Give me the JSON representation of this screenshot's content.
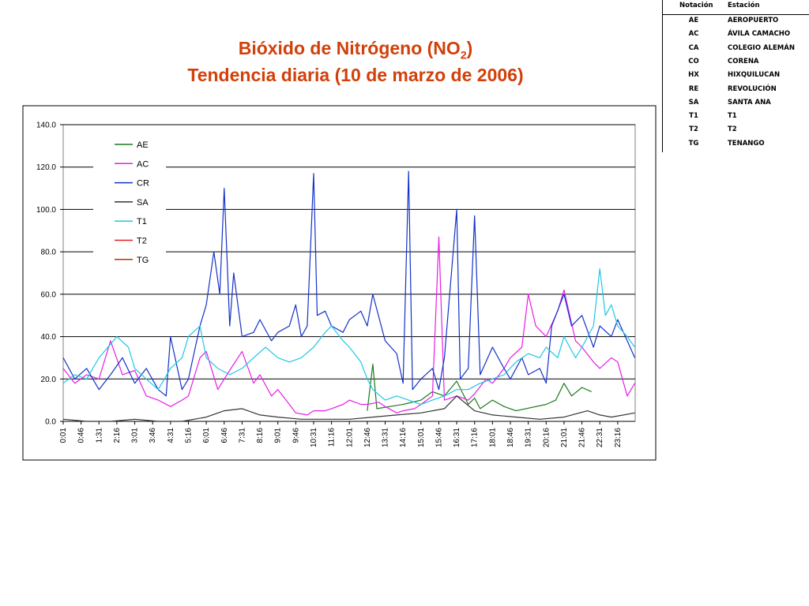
{
  "title_line1_main": "Bióxido de Nitrógeno (NO",
  "title_line1_sub": "2",
  "title_line1_end": ")",
  "title_line2": "Tendencia diaria (10 de marzo de 2006)",
  "station_table": {
    "headers": [
      "Notación",
      "Estación"
    ],
    "rows": [
      {
        "code": "AE",
        "name": "AEROPUERTO"
      },
      {
        "code": "AC",
        "name": "ÁVILA CAMACHO"
      },
      {
        "code": "CA",
        "name": "COLEGIO ALEMÁN"
      },
      {
        "code": "CO",
        "name": "CORENA"
      },
      {
        "code": "HX",
        "name": "HIXQUILUCAN"
      },
      {
        "code": "RE",
        "name": "REVOLUCIÓN"
      },
      {
        "code": "SA",
        "name": "SANTA ANA"
      },
      {
        "code": "T1",
        "name": "T1"
      },
      {
        "code": "T2",
        "name": "T2"
      },
      {
        "code": "TG",
        "name": "TENANGO"
      }
    ]
  },
  "chart_data": {
    "type": "line",
    "title": "Bióxido de Nitrógeno (NO2) Tendencia diaria (10 de marzo de 2006)",
    "xlabel": "",
    "ylabel": "",
    "ylim": [
      0,
      140
    ],
    "yticks": [
      "0.0",
      "20.0",
      "40.0",
      "60.0",
      "80.0",
      "100.0",
      "120.0",
      "140.0"
    ],
    "xlim_minutes": [
      1,
      1440
    ],
    "xtick_labels": [
      "0:01",
      "0:46",
      "1:31",
      "2:16",
      "3:01",
      "3:46",
      "4:31",
      "5:16",
      "6:01",
      "6:46",
      "7:31",
      "8:16",
      "9:01",
      "9:46",
      "10:31",
      "11:16",
      "12:01",
      "12:46",
      "13:31",
      "14:16",
      "15:01",
      "15:46",
      "16:31",
      "17:16",
      "18:01",
      "18:46",
      "19:31",
      "20:16",
      "21:01",
      "21:46",
      "22:31",
      "23:16"
    ],
    "grid": "horizontal",
    "legend_position": "top-left",
    "series": [
      {
        "name": "AE",
        "color": "#1a7a1a",
        "x": [
          "12:46",
          "13:00",
          "13:10",
          "14:16",
          "15:01",
          "15:30",
          "16:00",
          "16:31",
          "17:00",
          "17:16",
          "17:30",
          "18:01",
          "18:30",
          "19:00",
          "20:16",
          "20:40",
          "21:01",
          "21:20",
          "21:46",
          "22:10"
        ],
        "y": [
          5,
          27,
          6,
          8,
          10,
          14,
          12,
          19,
          8,
          11,
          6,
          10,
          7,
          5,
          8,
          10,
          18,
          12,
          16,
          14
        ]
      },
      {
        "name": "AC",
        "color": "#e61ee6",
        "x": [
          "0:01",
          "0:30",
          "1:00",
          "1:31",
          "2:00",
          "2:30",
          "3:01",
          "3:30",
          "4:00",
          "4:31",
          "5:00",
          "5:16",
          "5:45",
          "6:01",
          "6:30",
          "6:46",
          "7:10",
          "7:31",
          "8:00",
          "8:16",
          "8:45",
          "9:01",
          "9:30",
          "9:46",
          "10:15",
          "10:31",
          "11:00",
          "11:16",
          "11:45",
          "12:01",
          "12:30",
          "12:46",
          "13:15",
          "13:31",
          "14:00",
          "14:16",
          "14:45",
          "15:01",
          "15:30",
          "15:46",
          "16:00",
          "16:31",
          "17:00",
          "17:16",
          "17:45",
          "18:01",
          "18:30",
          "18:46",
          "19:15",
          "19:31",
          "19:50",
          "20:16",
          "20:45",
          "21:01",
          "21:30",
          "21:46",
          "22:15",
          "22:31",
          "23:00",
          "23:16",
          "23:40",
          "23:59"
        ],
        "y": [
          25,
          18,
          22,
          20,
          38,
          22,
          24,
          12,
          10,
          7,
          10,
          12,
          30,
          33,
          15,
          20,
          27,
          33,
          18,
          22,
          12,
          15,
          8,
          4,
          3,
          5,
          5,
          6,
          8,
          10,
          8,
          8,
          9,
          7,
          4,
          5,
          6,
          8,
          12,
          87,
          10,
          12,
          10,
          13,
          20,
          18,
          25,
          30,
          35,
          60,
          45,
          40,
          52,
          62,
          38,
          35,
          28,
          25,
          30,
          28,
          12,
          18
        ]
      },
      {
        "name": "CR",
        "color": "#1432c8",
        "x": [
          "0:01",
          "0:30",
          "1:00",
          "1:31",
          "2:00",
          "2:30",
          "3:01",
          "3:30",
          "4:00",
          "4:20",
          "4:31",
          "5:00",
          "5:16",
          "5:45",
          "6:01",
          "6:20",
          "6:35",
          "6:46",
          "7:00",
          "7:10",
          "7:31",
          "8:00",
          "8:16",
          "8:45",
          "9:01",
          "9:30",
          "9:46",
          "10:00",
          "10:15",
          "10:31",
          "10:40",
          "11:00",
          "11:16",
          "11:45",
          "12:01",
          "12:30",
          "12:46",
          "13:00",
          "13:31",
          "14:00",
          "14:16",
          "14:30",
          "14:40",
          "15:01",
          "15:30",
          "15:46",
          "16:00",
          "16:31",
          "16:40",
          "17:00",
          "17:16",
          "17:30",
          "18:01",
          "18:30",
          "18:46",
          "19:15",
          "19:31",
          "20:00",
          "20:16",
          "20:30",
          "21:01",
          "21:20",
          "21:46",
          "22:15",
          "22:31",
          "23:00",
          "23:16",
          "23:40",
          "23:59"
        ],
        "y": [
          30,
          20,
          25,
          15,
          22,
          30,
          18,
          25,
          15,
          12,
          40,
          15,
          20,
          45,
          55,
          80,
          60,
          110,
          45,
          70,
          40,
          42,
          48,
          38,
          42,
          45,
          55,
          40,
          45,
          117,
          50,
          52,
          45,
          42,
          48,
          52,
          45,
          60,
          38,
          32,
          18,
          118,
          15,
          20,
          25,
          15,
          30,
          100,
          20,
          25,
          97,
          22,
          35,
          25,
          20,
          30,
          22,
          25,
          18,
          45,
          60,
          45,
          50,
          35,
          45,
          40,
          48,
          38,
          30
        ]
      },
      {
        "name": "SA",
        "color": "#333333",
        "x": [
          "0:01",
          "1:00",
          "2:00",
          "3:01",
          "4:00",
          "5:00",
          "6:01",
          "6:46",
          "7:31",
          "8:16",
          "9:01",
          "10:00",
          "11:00",
          "12:01",
          "13:00",
          "14:00",
          "15:01",
          "16:00",
          "16:31",
          "17:16",
          "18:01",
          "19:00",
          "20:00",
          "21:01",
          "22:00",
          "22:31",
          "23:00",
          "23:59"
        ],
        "y": [
          1,
          0,
          0,
          1,
          0,
          0,
          2,
          5,
          6,
          3,
          2,
          1,
          1,
          1,
          2,
          3,
          4,
          6,
          12,
          5,
          3,
          2,
          1,
          2,
          5,
          3,
          2,
          4
        ]
      },
      {
        "name": "T1",
        "color": "#1ec8e6",
        "x": [
          "0:01",
          "0:30",
          "1:00",
          "1:31",
          "2:16",
          "2:45",
          "3:01",
          "3:30",
          "4:00",
          "4:31",
          "5:00",
          "5:16",
          "5:45",
          "6:01",
          "6:30",
          "7:00",
          "7:31",
          "8:00",
          "8:30",
          "9:01",
          "9:30",
          "10:00",
          "10:31",
          "11:00",
          "11:16",
          "11:45",
          "12:01",
          "12:30",
          "12:46",
          "13:00",
          "13:31",
          "14:00",
          "14:30",
          "15:01",
          "15:30",
          "16:00",
          "16:31",
          "17:00",
          "17:30",
          "18:01",
          "18:30",
          "19:00",
          "19:31",
          "20:00",
          "20:16",
          "20:45",
          "21:01",
          "21:30",
          "21:46",
          "22:15",
          "22:31",
          "22:45",
          "23:00",
          "23:16",
          "23:40",
          "23:59"
        ],
        "y": [
          18,
          22,
          20,
          30,
          40,
          35,
          25,
          20,
          15,
          25,
          30,
          40,
          45,
          30,
          25,
          22,
          25,
          30,
          35,
          30,
          28,
          30,
          35,
          42,
          45,
          38,
          35,
          28,
          20,
          15,
          10,
          12,
          10,
          8,
          10,
          12,
          15,
          15,
          18,
          20,
          22,
          28,
          32,
          30,
          35,
          30,
          40,
          30,
          35,
          45,
          72,
          50,
          55,
          45,
          40,
          35
        ]
      },
      {
        "name": "T2",
        "color": "#e61e1e",
        "x": [],
        "y": []
      },
      {
        "name": "TG",
        "color": "#b43214",
        "x": [],
        "y": []
      }
    ]
  }
}
